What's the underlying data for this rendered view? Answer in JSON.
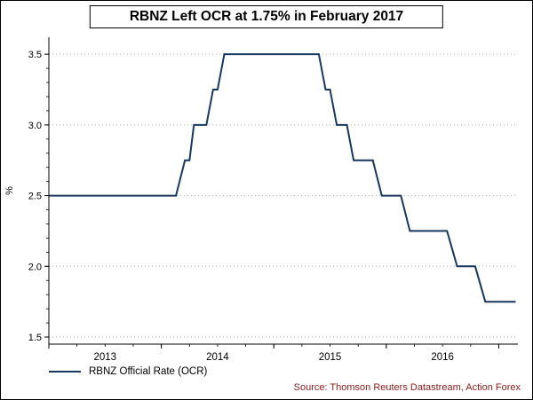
{
  "title": "RBNZ Left OCR at 1.75% in February 2017",
  "legend": {
    "label": "RBNZ Official Rate (OCR)"
  },
  "source": "Source: Thomson Reuters Datastream, Action Forex",
  "colors": {
    "line": "#17375e",
    "grid": "#b0b0b0",
    "axis": "#000000",
    "source_text": "#8b1a1a",
    "background": "#ffffff"
  },
  "chart_data": {
    "type": "line",
    "subtype": "step-like policy rate path",
    "title": "RBNZ Left OCR at 1.75% in February 2017",
    "xlabel": "",
    "ylabel": "%",
    "grid": "horizontal dotted gridlines",
    "legend_position": "bottom-left",
    "legend_entries": [
      "RBNZ Official Rate (OCR)"
    ],
    "xlim": [
      2013.0,
      2017.17
    ],
    "ylim": [
      1.5,
      3.5
    ],
    "yticks": [
      {
        "value": 1.5,
        "label": "1.5"
      },
      {
        "value": 2.0,
        "label": "2.0"
      },
      {
        "value": 2.5,
        "label": "2.5"
      },
      {
        "value": 3.0,
        "label": "3.0"
      },
      {
        "value": 3.5,
        "label": "3.5"
      }
    ],
    "xticks": [
      {
        "value": 2013.5,
        "label": "2013"
      },
      {
        "value": 2014.5,
        "label": "2014"
      },
      {
        "value": 2015.5,
        "label": "2015"
      },
      {
        "value": 2016.5,
        "label": "2016"
      }
    ],
    "x_year_ticks": [
      2013,
      2014,
      2015,
      2016,
      2017
    ],
    "series": [
      {
        "name": "RBNZ Official Rate (OCR)",
        "points": [
          [
            2013.0,
            2.5
          ],
          [
            2014.13,
            2.5
          ],
          [
            2014.21,
            2.75
          ],
          [
            2014.25,
            2.75
          ],
          [
            2014.29,
            3.0
          ],
          [
            2014.4,
            3.0
          ],
          [
            2014.46,
            3.25
          ],
          [
            2014.5,
            3.25
          ],
          [
            2014.56,
            3.5
          ],
          [
            2015.4,
            3.5
          ],
          [
            2015.46,
            3.25
          ],
          [
            2015.5,
            3.25
          ],
          [
            2015.56,
            3.0
          ],
          [
            2015.65,
            3.0
          ],
          [
            2015.71,
            2.75
          ],
          [
            2015.88,
            2.75
          ],
          [
            2015.96,
            2.5
          ],
          [
            2016.13,
            2.5
          ],
          [
            2016.21,
            2.25
          ],
          [
            2016.54,
            2.25
          ],
          [
            2016.63,
            2.0
          ],
          [
            2016.79,
            2.0
          ],
          [
            2016.88,
            1.75
          ],
          [
            2017.15,
            1.75
          ]
        ]
      }
    ]
  }
}
